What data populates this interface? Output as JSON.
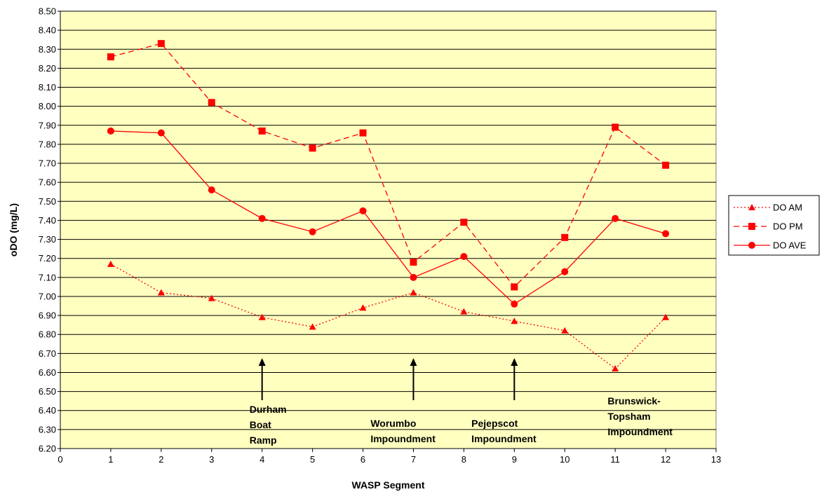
{
  "chart_data": {
    "type": "line",
    "xlabel": "WASP Segment",
    "ylabel": "oDO (mg/L)",
    "xlim": [
      0,
      13
    ],
    "ylim": [
      6.2,
      8.5
    ],
    "x_ticks": [
      "0",
      "1",
      "2",
      "3",
      "4",
      "5",
      "6",
      "7",
      "8",
      "9",
      "10",
      "11",
      "12",
      "13"
    ],
    "y_ticks": [
      "6.20",
      "6.30",
      "6.40",
      "6.50",
      "6.60",
      "6.70",
      "6.80",
      "6.90",
      "7.00",
      "7.10",
      "7.20",
      "7.30",
      "7.40",
      "7.50",
      "7.60",
      "7.70",
      "7.80",
      "7.90",
      "8.00",
      "8.10",
      "8.20",
      "8.30",
      "8.40",
      "8.50"
    ],
    "grid": "horizontal",
    "plot_background": "#FFFFC0",
    "series_color": "#FF0000",
    "legend_position": "right",
    "x": [
      1,
      2,
      3,
      4,
      5,
      6,
      7,
      8,
      9,
      10,
      11,
      12
    ],
    "series": [
      {
        "name": "DO AM",
        "line": "dotted",
        "marker": "triangle",
        "values": [
          7.17,
          7.02,
          6.99,
          6.89,
          6.84,
          6.94,
          7.02,
          6.92,
          6.87,
          6.82,
          6.62,
          6.89
        ]
      },
      {
        "name": "DO PM",
        "line": "dashed",
        "marker": "square",
        "values": [
          8.26,
          8.33,
          8.02,
          7.87,
          7.78,
          7.86,
          7.18,
          7.39,
          7.05,
          7.31,
          7.89,
          7.69
        ]
      },
      {
        "name": "DO AVE",
        "line": "solid",
        "marker": "circle",
        "values": [
          7.87,
          7.86,
          7.56,
          7.41,
          7.34,
          7.45,
          7.1,
          7.21,
          6.96,
          7.13,
          7.41,
          7.33
        ]
      }
    ],
    "annotations": [
      {
        "x": 4,
        "lines": [
          "Durham",
          "Boat",
          "Ramp"
        ]
      },
      {
        "x": 7,
        "lines": [
          "Worumbo",
          "Impoundment"
        ]
      },
      {
        "x": 9,
        "lines": [
          "Pejepscot",
          "Impoundment"
        ]
      },
      {
        "x": 11,
        "lines": [
          "Brunswick-",
          "Topsham",
          "Impoundment"
        ]
      }
    ]
  }
}
